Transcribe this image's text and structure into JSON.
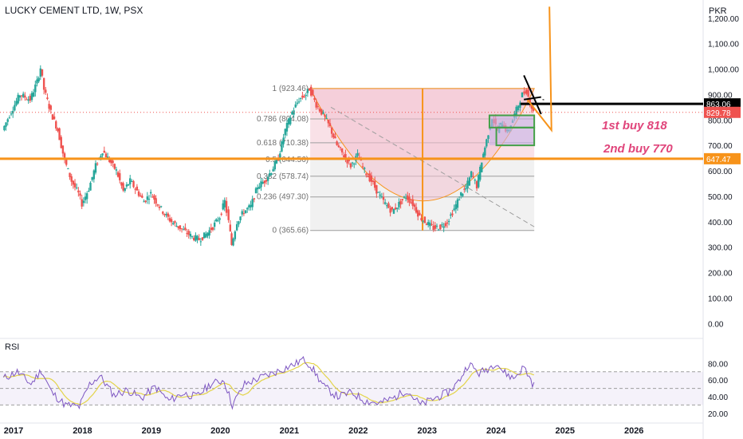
{
  "header": {
    "title": "LUCKY CEMENT LTD, 1W, PSX",
    "currency": "PKR"
  },
  "colors": {
    "up": "#26a69a",
    "down": "#ef5350",
    "orange": "#f7931a",
    "fib_fill": "#f2c1cf",
    "green_box": "#43a047",
    "rsi_line": "#7e57c2",
    "rsi_ma": "#e3d44a",
    "black": "#000000",
    "pink_text": "#e0457b"
  },
  "chart_data": {
    "type": "candlestick",
    "title": "LUCKY CEMENT LTD, 1W, PSX",
    "y_axis": {
      "unit": "PKR",
      "min": -40,
      "max": 1240,
      "ticks": [
        "1,200.00",
        "1,100.00",
        "1,000.00",
        "900.00",
        "800.00",
        "700.00",
        "600.00",
        "500.00",
        "400.00",
        "300.00",
        "200.00",
        "100.00",
        "0.00"
      ]
    },
    "x_axis": {
      "labels": [
        "2017",
        "2018",
        "2019",
        "2020",
        "2021",
        "2022",
        "2023",
        "2024",
        "2025",
        "2026"
      ],
      "years": [
        2017,
        2018,
        2019,
        2020,
        2021,
        2022,
        2023,
        2024,
        2025,
        2026
      ],
      "min": 2017,
      "max": 2027.0
    },
    "price_series": [
      {
        "t": 2016.9,
        "v": 760
      },
      {
        "t": 2017.0,
        "v": 820
      },
      {
        "t": 2017.15,
        "v": 900
      },
      {
        "t": 2017.3,
        "v": 880
      },
      {
        "t": 2017.4,
        "v": 950
      },
      {
        "t": 2017.45,
        "v": 1005
      },
      {
        "t": 2017.5,
        "v": 920
      },
      {
        "t": 2017.6,
        "v": 830
      },
      {
        "t": 2017.7,
        "v": 760
      },
      {
        "t": 2017.8,
        "v": 640
      },
      {
        "t": 2017.9,
        "v": 560
      },
      {
        "t": 2018.0,
        "v": 510
      },
      {
        "t": 2018.05,
        "v": 470
      },
      {
        "t": 2018.15,
        "v": 530
      },
      {
        "t": 2018.25,
        "v": 620
      },
      {
        "t": 2018.35,
        "v": 680
      },
      {
        "t": 2018.45,
        "v": 640
      },
      {
        "t": 2018.55,
        "v": 600
      },
      {
        "t": 2018.65,
        "v": 520
      },
      {
        "t": 2018.75,
        "v": 560
      },
      {
        "t": 2018.85,
        "v": 520
      },
      {
        "t": 2018.95,
        "v": 480
      },
      {
        "t": 2019.05,
        "v": 510
      },
      {
        "t": 2019.15,
        "v": 470
      },
      {
        "t": 2019.25,
        "v": 430
      },
      {
        "t": 2019.35,
        "v": 400
      },
      {
        "t": 2019.45,
        "v": 380
      },
      {
        "t": 2019.55,
        "v": 360
      },
      {
        "t": 2019.65,
        "v": 340
      },
      {
        "t": 2019.75,
        "v": 330
      },
      {
        "t": 2019.85,
        "v": 350
      },
      {
        "t": 2019.95,
        "v": 380
      },
      {
        "t": 2020.05,
        "v": 420
      },
      {
        "t": 2020.12,
        "v": 480
      },
      {
        "t": 2020.18,
        "v": 400
      },
      {
        "t": 2020.22,
        "v": 310
      },
      {
        "t": 2020.3,
        "v": 400
      },
      {
        "t": 2020.4,
        "v": 440
      },
      {
        "t": 2020.5,
        "v": 460
      },
      {
        "t": 2020.6,
        "v": 540
      },
      {
        "t": 2020.7,
        "v": 560
      },
      {
        "t": 2020.8,
        "v": 600
      },
      {
        "t": 2020.9,
        "v": 650
      },
      {
        "t": 2021.0,
        "v": 760
      },
      {
        "t": 2021.1,
        "v": 830
      },
      {
        "t": 2021.2,
        "v": 880
      },
      {
        "t": 2021.3,
        "v": 900
      },
      {
        "t": 2021.35,
        "v": 923
      },
      {
        "t": 2021.45,
        "v": 860
      },
      {
        "t": 2021.55,
        "v": 820
      },
      {
        "t": 2021.65,
        "v": 770
      },
      {
        "t": 2021.75,
        "v": 700
      },
      {
        "t": 2021.85,
        "v": 660
      },
      {
        "t": 2021.95,
        "v": 620
      },
      {
        "t": 2022.05,
        "v": 660
      },
      {
        "t": 2022.15,
        "v": 600
      },
      {
        "t": 2022.25,
        "v": 560
      },
      {
        "t": 2022.35,
        "v": 510
      },
      {
        "t": 2022.45,
        "v": 470
      },
      {
        "t": 2022.55,
        "v": 440
      },
      {
        "t": 2022.65,
        "v": 470
      },
      {
        "t": 2022.75,
        "v": 500
      },
      {
        "t": 2022.85,
        "v": 470
      },
      {
        "t": 2022.95,
        "v": 420
      },
      {
        "t": 2023.05,
        "v": 395
      },
      {
        "t": 2023.15,
        "v": 375
      },
      {
        "t": 2023.25,
        "v": 380
      },
      {
        "t": 2023.35,
        "v": 400
      },
      {
        "t": 2023.45,
        "v": 450
      },
      {
        "t": 2023.55,
        "v": 510
      },
      {
        "t": 2023.62,
        "v": 530
      },
      {
        "t": 2023.7,
        "v": 590
      },
      {
        "t": 2023.78,
        "v": 540
      },
      {
        "t": 2023.85,
        "v": 640
      },
      {
        "t": 2023.92,
        "v": 720
      },
      {
        "t": 2024.0,
        "v": 810
      },
      {
        "t": 2024.08,
        "v": 760
      },
      {
        "t": 2024.15,
        "v": 790
      },
      {
        "t": 2024.22,
        "v": 750
      },
      {
        "t": 2024.3,
        "v": 800
      },
      {
        "t": 2024.38,
        "v": 860
      },
      {
        "t": 2024.44,
        "v": 900
      },
      {
        "t": 2024.5,
        "v": 915
      },
      {
        "t": 2024.55,
        "v": 870
      },
      {
        "t": 2024.6,
        "v": 830
      }
    ],
    "fib_levels": [
      {
        "label": "1 (923.46)",
        "value": 923.46
      },
      {
        "label": "0.786 (804.08)",
        "value": 804.08
      },
      {
        "label": "0.618 (710.38)",
        "value": 710.38
      },
      {
        "label": "0.5 (644.56)",
        "value": 644.56
      },
      {
        "label": "0.382 (578.74)",
        "value": 578.74
      },
      {
        "label": "0.236 (497.30)",
        "value": 497.3
      },
      {
        "label": "0 (365.66)",
        "value": 365.66
      }
    ],
    "price_tags": [
      {
        "text": "863.06",
        "value": 863.06,
        "color": "#000000"
      },
      {
        "text": "829.78",
        "value": 829.78,
        "color": "#ef5350"
      },
      {
        "text": "647.47",
        "value": 647.47,
        "color": "#f7931a"
      }
    ],
    "horizontal_lines": [
      {
        "value": 647.47,
        "color": "#f7931a"
      },
      {
        "value": 863.06,
        "from": 2024.4,
        "color": "#000000"
      }
    ],
    "rsi": {
      "label": "RSI",
      "ticks": [
        "80.00",
        "60.00",
        "40.00",
        "20.00"
      ],
      "upper": 70,
      "lower": 30,
      "mid": 50,
      "range": [
        15,
        90
      ],
      "series": [
        {
          "t": 2016.9,
          "v": 62
        },
        {
          "t": 2017.1,
          "v": 70
        },
        {
          "t": 2017.3,
          "v": 55
        },
        {
          "t": 2017.45,
          "v": 72
        },
        {
          "t": 2017.6,
          "v": 45
        },
        {
          "t": 2017.8,
          "v": 30
        },
        {
          "t": 2018.0,
          "v": 28
        },
        {
          "t": 2018.15,
          "v": 55
        },
        {
          "t": 2018.3,
          "v": 65
        },
        {
          "t": 2018.5,
          "v": 42
        },
        {
          "t": 2018.7,
          "v": 48
        },
        {
          "t": 2018.9,
          "v": 38
        },
        {
          "t": 2019.1,
          "v": 52
        },
        {
          "t": 2019.3,
          "v": 35
        },
        {
          "t": 2019.5,
          "v": 44
        },
        {
          "t": 2019.7,
          "v": 40
        },
        {
          "t": 2019.9,
          "v": 55
        },
        {
          "t": 2020.1,
          "v": 60
        },
        {
          "t": 2020.22,
          "v": 30
        },
        {
          "t": 2020.4,
          "v": 55
        },
        {
          "t": 2020.6,
          "v": 62
        },
        {
          "t": 2020.8,
          "v": 68
        },
        {
          "t": 2021.0,
          "v": 75
        },
        {
          "t": 2021.15,
          "v": 80
        },
        {
          "t": 2021.25,
          "v": 86
        },
        {
          "t": 2021.35,
          "v": 78
        },
        {
          "t": 2021.55,
          "v": 52
        },
        {
          "t": 2021.75,
          "v": 40
        },
        {
          "t": 2021.95,
          "v": 45
        },
        {
          "t": 2022.15,
          "v": 35
        },
        {
          "t": 2022.35,
          "v": 32
        },
        {
          "t": 2022.55,
          "v": 38
        },
        {
          "t": 2022.75,
          "v": 48
        },
        {
          "t": 2022.95,
          "v": 30
        },
        {
          "t": 2023.15,
          "v": 38
        },
        {
          "t": 2023.35,
          "v": 45
        },
        {
          "t": 2023.5,
          "v": 58
        },
        {
          "t": 2023.65,
          "v": 80
        },
        {
          "t": 2023.8,
          "v": 68
        },
        {
          "t": 2023.95,
          "v": 75
        },
        {
          "t": 2024.05,
          "v": 82
        },
        {
          "t": 2024.15,
          "v": 70
        },
        {
          "t": 2024.3,
          "v": 62
        },
        {
          "t": 2024.45,
          "v": 76
        },
        {
          "t": 2024.55,
          "v": 60
        },
        {
          "t": 2024.62,
          "v": 50
        }
      ]
    }
  },
  "annotations": {
    "buy1": "1st buy 818",
    "buy2": "2nd buy 770"
  }
}
